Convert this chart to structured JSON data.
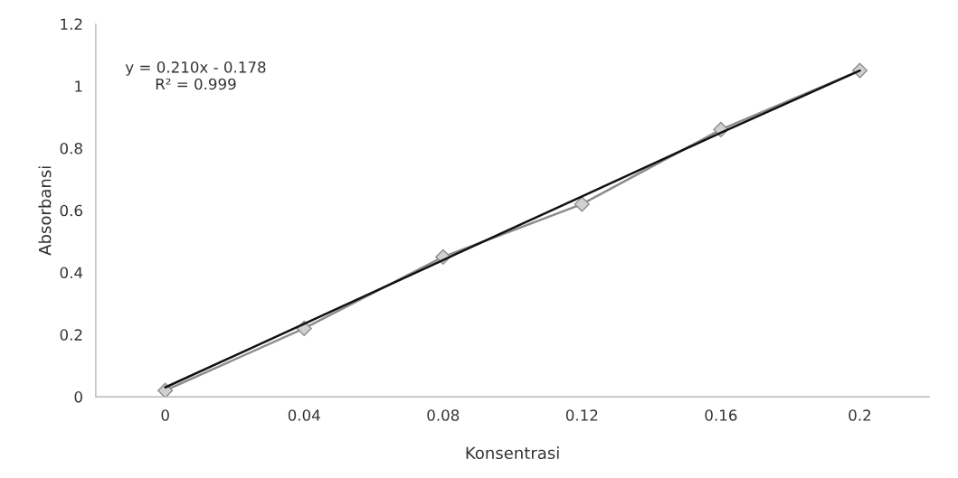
{
  "chart_data": {
    "type": "line",
    "xlabel": "Konsentrasi",
    "ylabel": "Absorbansi",
    "categories": [
      "0",
      "0.04",
      "0.08",
      "0.12",
      "0.16",
      "0.2"
    ],
    "series": [
      {
        "color": "#8c8c8c",
        "marker": "diamond",
        "values": [
          0.02,
          0.22,
          0.45,
          0.62,
          0.86,
          1.05
        ]
      },
      {
        "color": "#111111",
        "marker": "none",
        "values": [
          0.03,
          0.235,
          0.44,
          0.645,
          0.85,
          1.05
        ]
      }
    ],
    "ylim": [
      0,
      1.2
    ],
    "yticks": [
      0,
      0.2,
      0.4,
      0.6,
      0.8,
      1,
      1.2
    ],
    "grid": false,
    "legend": false,
    "annotations": [
      "y = 0.210x - 0.178\nR² = 0.999"
    ]
  }
}
